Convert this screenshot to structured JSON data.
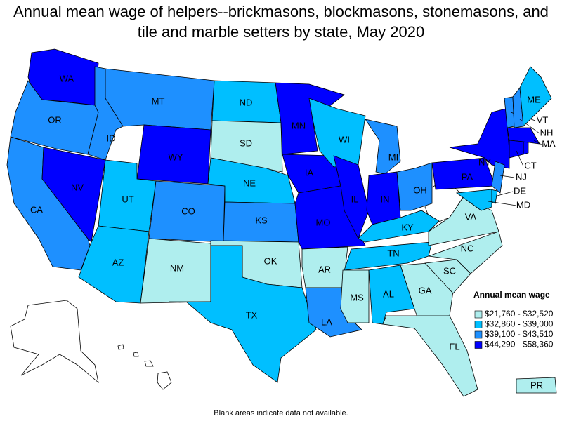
{
  "title": "Annual mean wage of helpers--brickmasons, blockmasons, stonemasons, and tile and marble setters by state, May 2020",
  "legend": {
    "title": "Annual mean wage",
    "items": [
      {
        "label": "$21,760 - $32,520",
        "color": "#afeeee"
      },
      {
        "label": "$32,860 - $39,000",
        "color": "#00bfff"
      },
      {
        "label": "$39,100 - $43,510",
        "color": "#1e90ff"
      },
      {
        "label": "$44,290 - $58,360",
        "color": "#0000ff"
      }
    ]
  },
  "states": [
    {
      "label": "WA",
      "color": "#0000ff"
    },
    {
      "label": "OR",
      "color": "#1e90ff"
    },
    {
      "label": "CA",
      "color": "#1e90ff"
    },
    {
      "label": "NV",
      "color": "#0000ff"
    },
    {
      "label": "ID",
      "color": "#1e90ff"
    },
    {
      "label": "MT",
      "color": "#1e90ff"
    },
    {
      "label": "WY",
      "color": "#0000ff"
    },
    {
      "label": "UT",
      "color": "#00bfff"
    },
    {
      "label": "AZ",
      "color": "#00bfff"
    },
    {
      "label": "CO",
      "color": "#1e90ff"
    },
    {
      "label": "NM",
      "color": "#afeeee"
    },
    {
      "label": "ND",
      "color": "#00bfff"
    },
    {
      "label": "SD",
      "color": "#afeeee"
    },
    {
      "label": "NE",
      "color": "#00bfff"
    },
    {
      "label": "KS",
      "color": "#1e90ff"
    },
    {
      "label": "OK",
      "color": "#afeeee"
    },
    {
      "label": "TX",
      "color": "#00bfff"
    },
    {
      "label": "MN",
      "color": "#0000ff"
    },
    {
      "label": "IA",
      "color": "#0000ff"
    },
    {
      "label": "MO",
      "color": "#0000ff"
    },
    {
      "label": "AR",
      "color": "#afeeee"
    },
    {
      "label": "LA",
      "color": "#1e90ff"
    },
    {
      "label": "WI",
      "color": "#00bfff"
    },
    {
      "label": "IL",
      "color": "#0000ff"
    },
    {
      "label": "MI",
      "color": "#1e90ff"
    },
    {
      "label": "IN",
      "color": "#0000ff"
    },
    {
      "label": "OH",
      "color": "#1e90ff"
    },
    {
      "label": "KY",
      "color": "#00bfff"
    },
    {
      "label": "TN",
      "color": "#00bfff"
    },
    {
      "label": "MS",
      "color": "#afeeee"
    },
    {
      "label": "AL",
      "color": "#00bfff"
    },
    {
      "label": "GA",
      "color": "#afeeee"
    },
    {
      "label": "FL",
      "color": "#afeeee"
    },
    {
      "label": "SC",
      "color": "#afeeee"
    },
    {
      "label": "NC",
      "color": "#afeeee"
    },
    {
      "label": "VA",
      "color": "#afeeee"
    },
    {
      "label": "PA",
      "color": "#0000ff"
    },
    {
      "label": "NY",
      "color": "#0000ff"
    },
    {
      "label": "VT",
      "color": "#1e90ff"
    },
    {
      "label": "NH",
      "color": "#1e90ff"
    },
    {
      "label": "ME",
      "color": "#00bfff"
    },
    {
      "label": "MA",
      "color": "#0000ff"
    },
    {
      "label": "CT",
      "color": "#0000ff"
    },
    {
      "label": "NJ",
      "color": "#1e90ff"
    },
    {
      "label": "DE",
      "color": "#00bfff"
    },
    {
      "label": "MD",
      "color": "#00bfff"
    },
    {
      "label": "PR",
      "color": "#afeeee"
    }
  ],
  "note": "Blank areas indicate data not available."
}
